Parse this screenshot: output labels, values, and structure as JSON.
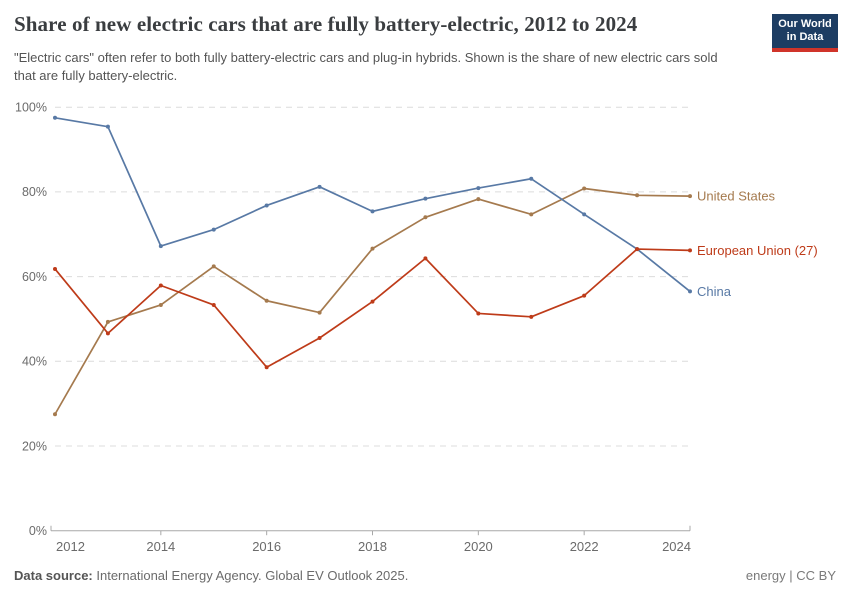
{
  "header": {
    "title": "Share of new electric cars that are fully battery-electric, 2012 to 2024",
    "subtitle": "\"Electric cars\" often refer to both fully battery-electric cars and plug-in hybrids. Shown is the share of new electric cars sold that are fully battery-electric.",
    "logo": {
      "line1": "Our World",
      "line2": "in Data",
      "bg_color": "#1d3d63",
      "stripe_color": "#d0342a"
    }
  },
  "chart_data": {
    "type": "line",
    "title": "Share of new electric cars that are fully battery-electric, 2012 to 2024",
    "x": [
      2012,
      2013,
      2014,
      2015,
      2016,
      2017,
      2018,
      2019,
      2020,
      2021,
      2022,
      2023,
      2024
    ],
    "series": [
      {
        "name": "United States",
        "color": "#a57a4e",
        "values": [
          27.5,
          49.3,
          53.3,
          62.4,
          54.3,
          51.5,
          66.6,
          74.0,
          78.3,
          74.7,
          80.8,
          79.2,
          79.0
        ]
      },
      {
        "name": "European Union (27)",
        "color": "#be3b19",
        "values": [
          61.8,
          46.6,
          57.9,
          53.3,
          38.6,
          45.5,
          54.1,
          64.3,
          51.3,
          50.5,
          55.5,
          66.5,
          66.2
        ]
      },
      {
        "name": "China",
        "color": "#5879a5",
        "values": [
          97.5,
          95.4,
          67.2,
          71.1,
          76.8,
          81.2,
          75.4,
          78.4,
          80.9,
          83.1,
          74.7,
          66.5,
          56.5
        ]
      }
    ],
    "ylim": [
      0,
      100
    ],
    "yticks": [
      0,
      20,
      40,
      60,
      80,
      100
    ],
    "ytick_suffix": "%",
    "xticks": [
      2012,
      2014,
      2016,
      2018,
      2020,
      2022,
      2024
    ],
    "grid": "horizontal-dashed",
    "legend_position": "line-end-labels-right",
    "colors": {
      "grid": "#dcdcdc",
      "axis": "#a8a8a8",
      "tick_label": "#6b6b6b"
    }
  },
  "footer": {
    "source_label": "Data source:",
    "source_text": " International Energy Agency. Global EV Outlook 2025.",
    "license": "energy | CC BY"
  }
}
